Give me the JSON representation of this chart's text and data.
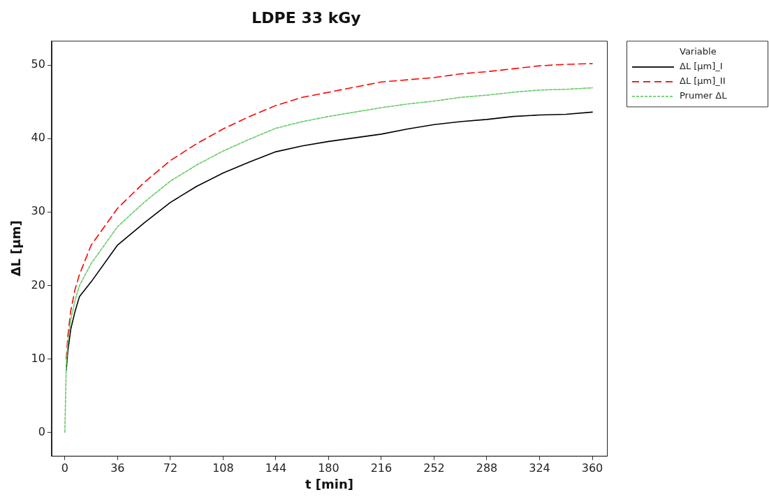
{
  "chart_data": {
    "type": "line",
    "title": "LDPE 33 kGy",
    "xlabel": "t [min]",
    "ylabel": "ΔL [µm]",
    "legend_title": "Variable",
    "legend": "top right",
    "grid": false,
    "marker": "none",
    "x": [
      0,
      1,
      2,
      4,
      7,
      10,
      18,
      36,
      54,
      72,
      90,
      108,
      126,
      144,
      162,
      180,
      198,
      216,
      234,
      252,
      270,
      288,
      306,
      324,
      342,
      360
    ],
    "xlim": [
      -9,
      370
    ],
    "xticks": [
      0,
      36,
      72,
      108,
      144,
      180,
      216,
      252,
      288,
      324,
      360
    ],
    "ylim": [
      -3.2,
      53.3
    ],
    "yticks": [
      0,
      10,
      20,
      30,
      40,
      50
    ],
    "series": [
      {
        "name": "ΔL [µm]_I",
        "color": "#000000",
        "line_style": "solid",
        "values": [
          null,
          8.5,
          11,
          14,
          16.5,
          18.5,
          20.5,
          25.5,
          28.5,
          31.3,
          33.5,
          35.3,
          36.8,
          38.2,
          39.0,
          39.6,
          40.1,
          40.6,
          41.3,
          41.9,
          42.3,
          42.6,
          43.0,
          43.2,
          43.3,
          43.6
        ]
      },
      {
        "name": "ΔL [µm]_II",
        "color": "#ff0000",
        "line_style": "dashed",
        "values": [
          null,
          10,
          13,
          16.5,
          19.5,
          21.5,
          25.5,
          30.5,
          34,
          37,
          39.3,
          41.3,
          43,
          44.5,
          45.6,
          46.3,
          47,
          47.7,
          48,
          48.3,
          48.8,
          49.1,
          49.5,
          49.9,
          50.1,
          50.2
        ]
      },
      {
        "name": "Prumer ΔL",
        "color": "#66cc66",
        "line_style": "dotted",
        "values": [
          0,
          9.3,
          12,
          15.3,
          18,
          20,
          23,
          28,
          31.3,
          34.2,
          36.4,
          38.3,
          39.9,
          41.4,
          42.3,
          43,
          43.6,
          44.2,
          44.7,
          45.1,
          45.6,
          45.9,
          46.3,
          46.6,
          46.7,
          46.9
        ]
      }
    ]
  }
}
